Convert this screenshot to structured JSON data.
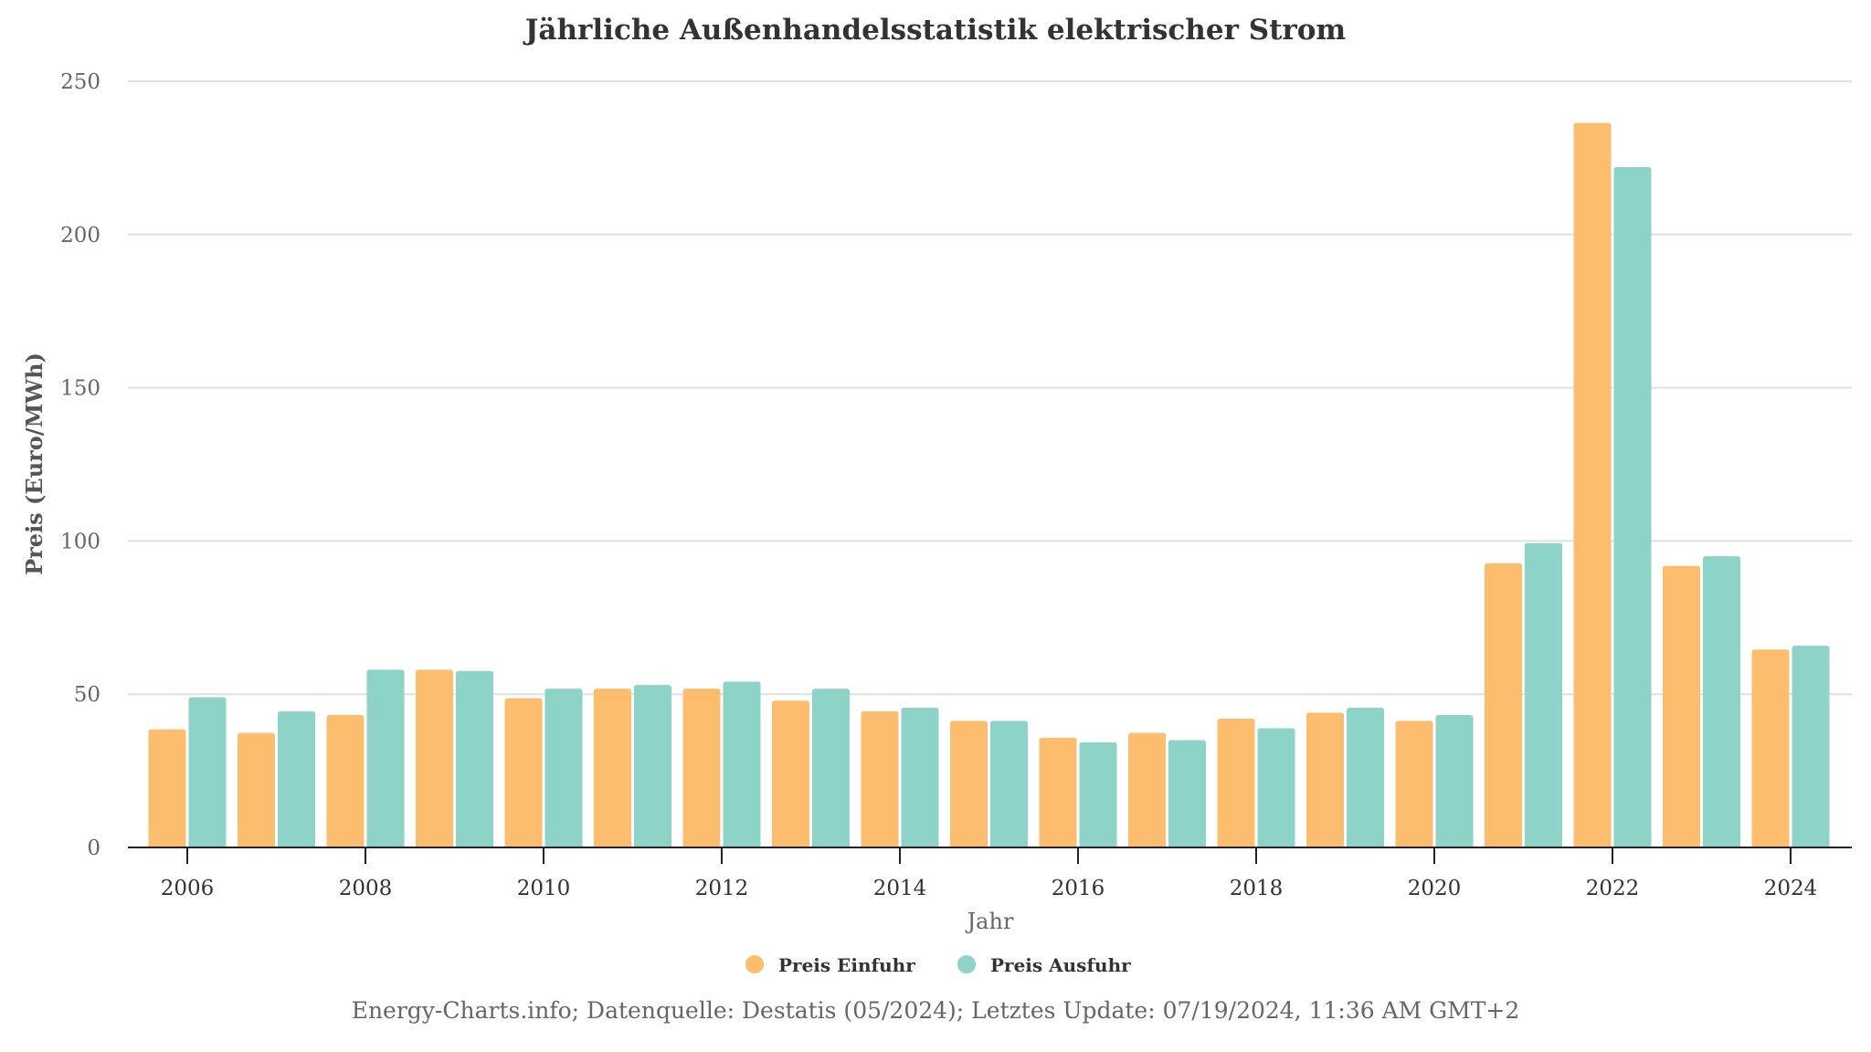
{
  "chart_data": {
    "type": "bar",
    "title": "Jährliche Außenhandelsstatistik elektrischer Strom",
    "xlabel": "Jahr",
    "ylabel": "Preis (Euro/MWh)",
    "ylim": [
      0,
      250
    ],
    "yticks": [
      0,
      50,
      100,
      150,
      200,
      250
    ],
    "grid": true,
    "legend_position": "bottom",
    "categories": [
      2006,
      2007,
      2008,
      2009,
      2010,
      2011,
      2012,
      2013,
      2014,
      2015,
      2016,
      2017,
      2018,
      2019,
      2020,
      2021,
      2022,
      2023,
      2024
    ],
    "xticks": [
      "2006",
      "2008",
      "2010",
      "2012",
      "2014",
      "2016",
      "2018",
      "2020",
      "2022",
      "2024"
    ],
    "series": [
      {
        "name": "Preis Einfuhr",
        "color": "#fdbd6e",
        "values": [
          38.5,
          37.4,
          43.2,
          58.0,
          48.7,
          51.8,
          51.8,
          47.9,
          44.4,
          41.3,
          35.8,
          37.4,
          42.0,
          44.0,
          41.3,
          92.7,
          236.4,
          91.9,
          64.6
        ]
      },
      {
        "name": "Preis Ausfuhr",
        "color": "#8dd3c7",
        "values": [
          49.0,
          44.4,
          58.0,
          57.6,
          51.8,
          53.0,
          54.1,
          51.8,
          45.6,
          41.3,
          34.3,
          35.0,
          38.9,
          45.6,
          43.2,
          99.3,
          222.0,
          95.0,
          65.8
        ]
      }
    ]
  },
  "footer": "Energy-Charts.info; Datenquelle: Destatis (05/2024); Letztes Update: 07/19/2024, 11:36 AM GMT+2"
}
